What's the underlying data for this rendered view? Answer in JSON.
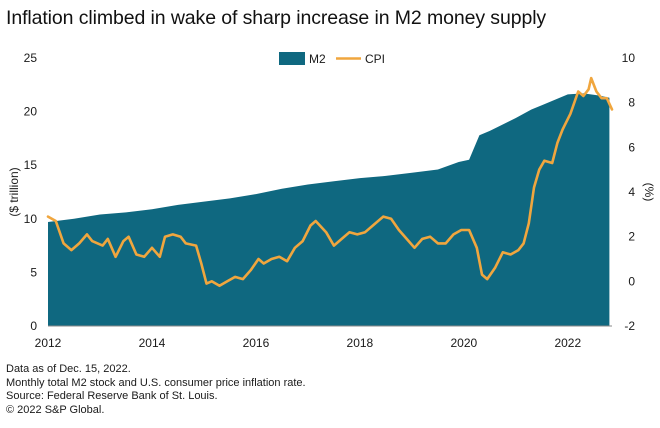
{
  "chart_data": {
    "type": "area+line",
    "title": "Inflation climbed in wake of sharp increase in M2 money supply",
    "legend": {
      "placement": "top-center"
    },
    "colors": {
      "m2": "#0f6880",
      "cpi": "#f0a63e"
    },
    "x_ticks": [
      "2012",
      "2014",
      "2016",
      "2018",
      "2020",
      "2022"
    ],
    "xlim": [
      2012.0,
      2022.85
    ],
    "left_axis": {
      "label": "($ trillion)",
      "ticks": [
        "0",
        "5",
        "10",
        "15",
        "20",
        "25"
      ],
      "range": [
        0,
        25
      ]
    },
    "right_axis": {
      "label": "(%)",
      "ticks": [
        "-2",
        "0",
        "2",
        "4",
        "6",
        "8",
        "10"
      ],
      "range": [
        -2,
        10
      ]
    },
    "grid": false,
    "series": [
      {
        "name": "M2",
        "kind": "area",
        "axis": "left",
        "points": [
          [
            2012.0,
            9.7
          ],
          [
            2012.5,
            10.0
          ],
          [
            2013.0,
            10.4
          ],
          [
            2013.5,
            10.6
          ],
          [
            2014.0,
            10.9
          ],
          [
            2014.5,
            11.3
          ],
          [
            2015.0,
            11.6
          ],
          [
            2015.5,
            11.9
          ],
          [
            2016.0,
            12.3
          ],
          [
            2016.5,
            12.8
          ],
          [
            2017.0,
            13.2
          ],
          [
            2017.5,
            13.5
          ],
          [
            2018.0,
            13.8
          ],
          [
            2018.5,
            14.0
          ],
          [
            2019.0,
            14.3
          ],
          [
            2019.5,
            14.6
          ],
          [
            2019.9,
            15.3
          ],
          [
            2020.1,
            15.5
          ],
          [
            2020.3,
            17.8
          ],
          [
            2020.5,
            18.2
          ],
          [
            2021.0,
            19.4
          ],
          [
            2021.3,
            20.2
          ],
          [
            2021.5,
            20.6
          ],
          [
            2022.0,
            21.6
          ],
          [
            2022.3,
            21.7
          ],
          [
            2022.6,
            21.5
          ],
          [
            2022.8,
            21.3
          ]
        ]
      },
      {
        "name": "CPI",
        "kind": "line",
        "axis": "right",
        "points": [
          [
            2012.0,
            2.9
          ],
          [
            2012.15,
            2.7
          ],
          [
            2012.3,
            1.7
          ],
          [
            2012.45,
            1.4
          ],
          [
            2012.6,
            1.7
          ],
          [
            2012.75,
            2.1
          ],
          [
            2012.85,
            1.8
          ],
          [
            2013.05,
            1.6
          ],
          [
            2013.15,
            1.9
          ],
          [
            2013.3,
            1.1
          ],
          [
            2013.45,
            1.8
          ],
          [
            2013.55,
            2.0
          ],
          [
            2013.7,
            1.2
          ],
          [
            2013.85,
            1.1
          ],
          [
            2014.0,
            1.5
          ],
          [
            2014.15,
            1.1
          ],
          [
            2014.25,
            2.0
          ],
          [
            2014.4,
            2.1
          ],
          [
            2014.55,
            2.0
          ],
          [
            2014.65,
            1.7
          ],
          [
            2014.85,
            1.6
          ],
          [
            2014.95,
            0.8
          ],
          [
            2015.05,
            -0.1
          ],
          [
            2015.15,
            0.0
          ],
          [
            2015.3,
            -0.2
          ],
          [
            2015.45,
            0.0
          ],
          [
            2015.6,
            0.2
          ],
          [
            2015.75,
            0.1
          ],
          [
            2015.9,
            0.5
          ],
          [
            2016.05,
            1.0
          ],
          [
            2016.15,
            0.8
          ],
          [
            2016.3,
            1.0
          ],
          [
            2016.45,
            1.1
          ],
          [
            2016.6,
            0.9
          ],
          [
            2016.75,
            1.5
          ],
          [
            2016.9,
            1.8
          ],
          [
            2017.05,
            2.5
          ],
          [
            2017.15,
            2.7
          ],
          [
            2017.35,
            2.2
          ],
          [
            2017.5,
            1.6
          ],
          [
            2017.65,
            1.9
          ],
          [
            2017.8,
            2.2
          ],
          [
            2017.95,
            2.1
          ],
          [
            2018.1,
            2.2
          ],
          [
            2018.25,
            2.5
          ],
          [
            2018.45,
            2.9
          ],
          [
            2018.6,
            2.8
          ],
          [
            2018.75,
            2.3
          ],
          [
            2018.9,
            1.9
          ],
          [
            2019.05,
            1.5
          ],
          [
            2019.2,
            1.9
          ],
          [
            2019.35,
            2.0
          ],
          [
            2019.5,
            1.7
          ],
          [
            2019.65,
            1.7
          ],
          [
            2019.8,
            2.1
          ],
          [
            2019.95,
            2.3
          ],
          [
            2020.1,
            2.3
          ],
          [
            2020.25,
            1.5
          ],
          [
            2020.35,
            0.3
          ],
          [
            2020.45,
            0.1
          ],
          [
            2020.6,
            0.6
          ],
          [
            2020.75,
            1.3
          ],
          [
            2020.9,
            1.2
          ],
          [
            2021.05,
            1.4
          ],
          [
            2021.15,
            1.7
          ],
          [
            2021.25,
            2.6
          ],
          [
            2021.35,
            4.2
          ],
          [
            2021.45,
            5.0
          ],
          [
            2021.55,
            5.4
          ],
          [
            2021.7,
            5.3
          ],
          [
            2021.8,
            6.2
          ],
          [
            2021.9,
            6.8
          ],
          [
            2022.05,
            7.5
          ],
          [
            2022.2,
            8.5
          ],
          [
            2022.3,
            8.3
          ],
          [
            2022.4,
            8.6
          ],
          [
            2022.45,
            9.1
          ],
          [
            2022.55,
            8.5
          ],
          [
            2022.65,
            8.2
          ],
          [
            2022.75,
            8.2
          ],
          [
            2022.85,
            7.7
          ]
        ]
      }
    ]
  },
  "notes": [
    "Data as of Dec. 15, 2022.",
    "Monthly total M2 stock and U.S. consumer price inflation rate.",
    "Source: Federal Reserve Bank of St. Louis.",
    "© 2022 S&P Global."
  ]
}
